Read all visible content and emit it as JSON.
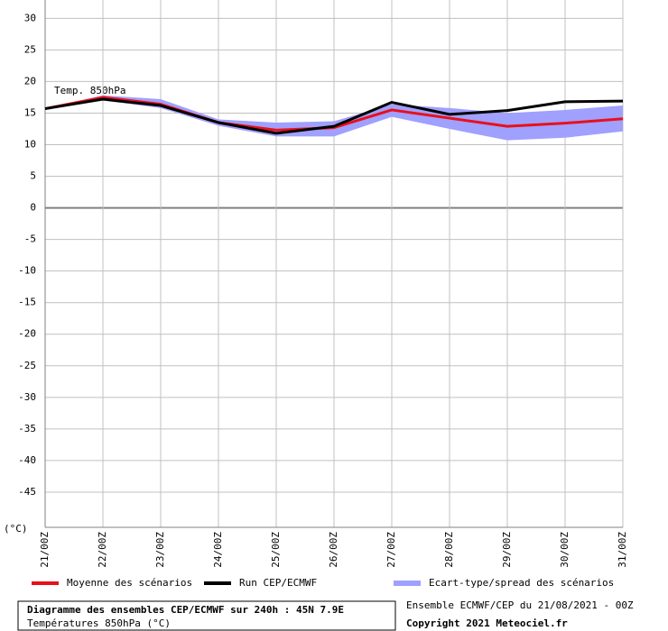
{
  "chart_data": {
    "type": "line",
    "annotation": "Temp. 850hPa",
    "ylabel": "(°C)",
    "categories": [
      "21/00Z",
      "22/00Z",
      "23/00Z",
      "24/00Z",
      "25/00Z",
      "26/00Z",
      "27/00Z",
      "28/00Z",
      "29/00Z",
      "30/00Z",
      "31/00Z"
    ],
    "series": [
      {
        "name": "Moyenne des scénarios",
        "color": "#e8101a",
        "values": [
          15.7,
          17.5,
          16.4,
          13.5,
          12.3,
          12.7,
          15.5,
          14.2,
          12.9,
          13.4,
          14.1
        ]
      },
      {
        "name": "Run CEP/ECMWF",
        "color": "#000000",
        "values": [
          15.7,
          17.2,
          16.2,
          13.5,
          11.8,
          12.9,
          16.7,
          14.8,
          15.4,
          16.8,
          16.9
        ]
      },
      {
        "name": "Ecart-type/spread des scénarios",
        "color": "#a0a0ff",
        "upper": [
          15.7,
          17.8,
          17.2,
          14.0,
          13.5,
          13.7,
          16.4,
          15.8,
          15.0,
          15.5,
          16.2
        ],
        "lower": [
          15.7,
          17.0,
          15.8,
          13.0,
          11.3,
          11.3,
          14.4,
          12.5,
          10.7,
          11.1,
          12.1
        ]
      }
    ],
    "ylim": [
      -50,
      32.9
    ],
    "yticks": [
      -45,
      -40,
      -35,
      -30,
      -25,
      -20,
      -15,
      -10,
      -5,
      0,
      5,
      10,
      15,
      20,
      25,
      30
    ],
    "grid": true,
    "footer": {
      "title": "Diagramme des ensembles CEP/ECMWF sur 240h : 45N 7.9E",
      "subtitle": "Températures 850hPa (°C)",
      "run": "Ensemble ECMWF/CEP du 21/08/2021 - 00Z",
      "copyright": "Copyright 2021 Meteociel.fr"
    }
  }
}
